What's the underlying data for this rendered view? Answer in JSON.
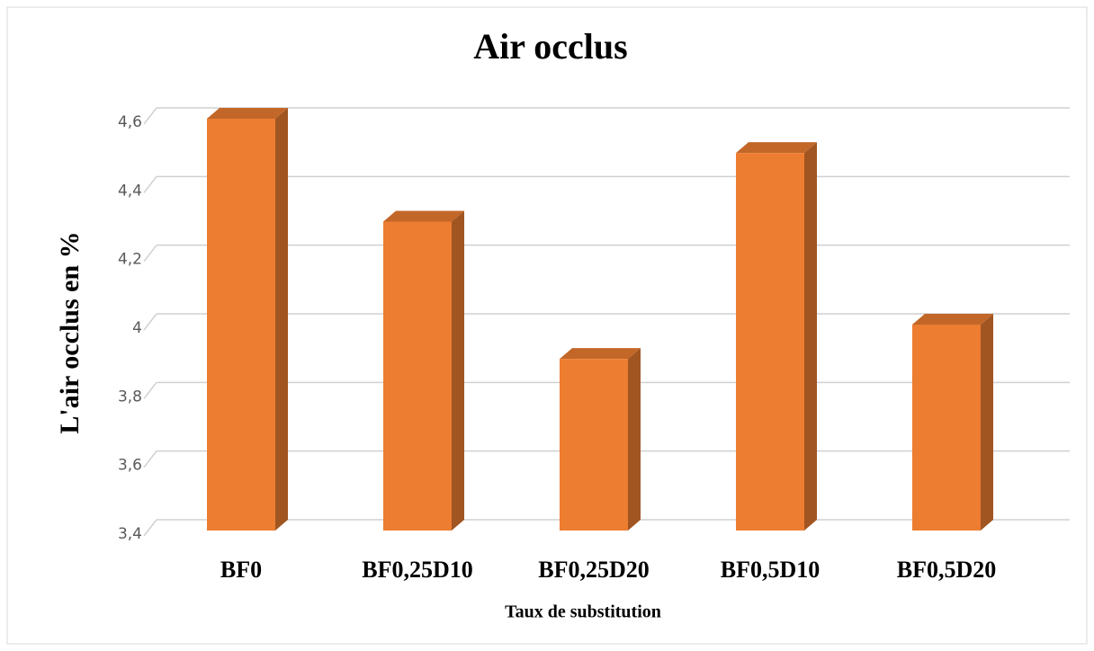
{
  "chart_data": {
    "type": "bar3d",
    "title": "Air occlus",
    "x_label": "Taux de substitution",
    "y_label": "L'air occlus en %",
    "categories": [
      "BF0",
      "BF0,25D10",
      "BF0,25D20",
      "BF0,5D10",
      "BF0,5D20"
    ],
    "values": [
      4.6,
      4.3,
      3.9,
      4.5,
      4.0
    ],
    "color": "#ed7d31",
    "ylim": [
      3.4,
      4.6
    ],
    "yticks": [
      {
        "value": 3.4,
        "label": "3,4"
      },
      {
        "value": 3.6,
        "label": "3,6"
      },
      {
        "value": 3.8,
        "label": "3,8"
      },
      4,
      {
        "value": 4.2,
        "label": "4,2"
      },
      {
        "value": 4.4,
        "label": "4,4"
      },
      {
        "value": 4.6,
        "label": "4,6"
      }
    ],
    "grid": true
  }
}
